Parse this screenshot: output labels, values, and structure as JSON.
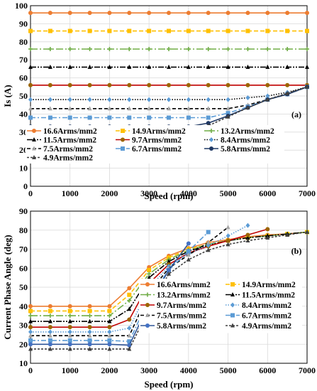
{
  "chart_data": [
    {
      "type": "line",
      "panel_label": "(a)",
      "xlabel": "Speed (rpm)",
      "ylabel": "Is (A)",
      "xlim": [
        0,
        7000
      ],
      "ylim": [
        0,
        100
      ],
      "xticks": [
        0,
        1000,
        2000,
        3000,
        4000,
        5000,
        6000,
        7000
      ],
      "yticks": [
        0,
        10,
        20,
        30,
        40,
        50,
        60,
        70,
        80,
        90,
        100
      ],
      "grid": true,
      "legend_placement": "inside-bottom-left",
      "series": [
        {
          "name": "16.6Arms/mm2",
          "color": "#ed7d31",
          "marker": "circle",
          "dash": "",
          "x": [
            0,
            500,
            1000,
            1500,
            2000,
            2500,
            3000,
            3500,
            4000,
            4500,
            5000,
            5500,
            6000,
            6500,
            7000
          ],
          "y": [
            96,
            96,
            96,
            96,
            96,
            96,
            96,
            96,
            96,
            96,
            96,
            96,
            96,
            96,
            96
          ]
        },
        {
          "name": "14.9Arms/mm2",
          "color": "#ffc000",
          "marker": "square",
          "dash": "6 3",
          "x": [
            0,
            500,
            1000,
            1500,
            2000,
            2500,
            3000,
            3500,
            4000,
            4500,
            5000,
            5500,
            6000,
            6500,
            7000
          ],
          "y": [
            86,
            86,
            86,
            86,
            86,
            86,
            86,
            86,
            86,
            86,
            86,
            86,
            86,
            86,
            86
          ]
        },
        {
          "name": "13.2Arms/mm2",
          "color": "#70ad47",
          "marker": "plus",
          "dash": "10 3 2 3",
          "x": [
            0,
            500,
            1000,
            1500,
            2000,
            2500,
            3000,
            3500,
            4000,
            4500,
            5000,
            5500,
            6000,
            6500,
            7000
          ],
          "y": [
            76,
            76,
            76,
            76,
            76,
            76,
            76,
            76,
            76,
            76,
            76,
            76,
            76,
            76,
            76
          ]
        },
        {
          "name": "11.5Arms/mm2",
          "color": "#000000",
          "marker": "triangle",
          "dash": "8 2 2 2 2 2",
          "x": [
            0,
            500,
            1000,
            1500,
            2000,
            2500,
            3000,
            3500,
            4000,
            4500,
            5000,
            5500,
            6000,
            6500,
            7000
          ],
          "y": [
            66,
            66,
            66,
            66,
            66,
            66,
            66,
            66,
            66,
            66,
            66,
            66,
            66,
            66,
            66
          ]
        },
        {
          "name": "9.7Arms/mm2",
          "color": "#c00000",
          "marker": "circle",
          "dash": "",
          "markerColor": "#9c6500",
          "x": [
            0,
            500,
            1000,
            1500,
            2000,
            2500,
            3000,
            3500,
            4000,
            4500,
            5000,
            5500,
            6000,
            6500,
            7000
          ],
          "y": [
            56,
            56,
            56,
            56,
            56,
            56,
            56,
            56,
            56,
            56,
            56,
            56,
            56,
            56,
            56
          ]
        },
        {
          "name": "8.4Arms/mm2",
          "color": "#000000",
          "marker": "diamond",
          "dash": "1.5 2",
          "markerColor": "#5b9bd5",
          "x": [
            0,
            500,
            1000,
            1500,
            2000,
            2500,
            3000,
            3500,
            4000,
            4500,
            5000,
            5500,
            6000,
            6500,
            7000
          ],
          "y": [
            48,
            48,
            48,
            48,
            48,
            48,
            48,
            48,
            48,
            48,
            48,
            49,
            50,
            52,
            55
          ]
        },
        {
          "name": "7.5Arms/mm2",
          "color": "#000000",
          "marker": "triangle",
          "dash": "5 3",
          "markerColor": "#a5a5a5",
          "x": [
            0,
            500,
            1000,
            1500,
            2000,
            2500,
            3000,
            3500,
            4000,
            4500,
            5000,
            5500,
            6000,
            6500,
            7000
          ],
          "y": [
            43,
            43,
            43,
            43,
            43,
            43,
            43,
            43,
            43,
            43,
            43,
            45,
            48,
            51,
            55
          ]
        },
        {
          "name": "6.7Arms/mm2",
          "color": "#5b9bd5",
          "marker": "square",
          "dash": "7 3 2 3",
          "x": [
            0,
            500,
            1000,
            1500,
            2000,
            2500,
            3000,
            3500,
            4000,
            4500,
            5000,
            5500,
            6000,
            6500,
            7000
          ],
          "y": [
            38,
            38,
            38,
            38,
            38,
            38,
            38,
            38,
            38,
            38,
            40.5,
            44,
            48,
            51,
            55
          ]
        },
        {
          "name": "5.8Arms/mm2",
          "color": "#1f3864",
          "marker": "circle",
          "dash": "",
          "x": [
            0,
            500,
            1000,
            1500,
            2000,
            2500,
            3000,
            3500,
            4000,
            4500,
            5000,
            5500,
            6000,
            6500,
            7000
          ],
          "y": [
            33,
            33,
            33,
            33,
            33,
            33,
            33,
            33,
            33,
            35,
            39,
            43.5,
            48,
            51,
            55
          ]
        },
        {
          "name": "4.9Arms/mm2",
          "color": "#404040",
          "marker": "triangle",
          "dash": "3 2",
          "x": [
            0,
            500,
            1000,
            1500,
            2000,
            2500,
            3000,
            3500,
            4000,
            4500,
            5000,
            5500,
            6000,
            6500,
            7000
          ],
          "y": [
            28,
            28,
            28,
            28,
            28,
            28,
            28,
            28,
            28,
            33.5,
            38.5,
            43.5,
            48,
            51.5,
            55
          ]
        }
      ]
    },
    {
      "type": "line",
      "panel_label": "(b)",
      "xlabel": "Speed (rpm)",
      "ylabel": "Current Phase Angle (deg)",
      "xlim": [
        0,
        7000
      ],
      "ylim": [
        10,
        90
      ],
      "xticks": [
        0,
        1000,
        2000,
        3000,
        4000,
        5000,
        6000,
        7000
      ],
      "yticks": [
        10,
        20,
        30,
        40,
        50,
        60,
        70,
        80,
        90
      ],
      "grid": true,
      "legend_placement": "inside-bottom-right",
      "series": [
        {
          "name": "16.6Arms/mm2",
          "color": "#ed7d31",
          "marker": "circle",
          "dash": "",
          "x": [
            0,
            500,
            1000,
            1500,
            2000,
            2500,
            3000,
            3500,
            4000,
            4500,
            5000,
            5500,
            6000,
            6500,
            7000
          ],
          "y": [
            40,
            40,
            40,
            40,
            40,
            49.5,
            60.5,
            66.5,
            70.5,
            73.5,
            75,
            76.5,
            77.5,
            78,
            79
          ]
        },
        {
          "name": "14.9Arms/mm2",
          "color": "#ffc000",
          "marker": "square",
          "dash": "6 3",
          "x": [
            0,
            500,
            1000,
            1500,
            2000,
            2500,
            3000,
            3500,
            4000,
            4500,
            5000,
            5500,
            6000,
            6500,
            7000
          ],
          "y": [
            37.5,
            37.5,
            37.5,
            37.5,
            37.5,
            46,
            59,
            65.5,
            70,
            72.5,
            74.5,
            76,
            77,
            78,
            79
          ]
        },
        {
          "name": "13.2Arms/mm2",
          "color": "#70ad47",
          "marker": "plus",
          "dash": "10 3 2 3",
          "x": [
            0,
            500,
            1000,
            1500,
            2000,
            2500,
            3000,
            3500,
            4000,
            4500,
            5000,
            5500,
            6000,
            6500,
            7000
          ],
          "y": [
            35,
            35,
            35,
            35,
            35,
            43,
            57,
            64.5,
            69.5,
            72.5,
            74.5,
            76,
            77,
            78,
            79
          ]
        },
        {
          "name": "11.5Arms/mm2",
          "color": "#000000",
          "marker": "triangle",
          "dash": "8 2 2 2 2 2",
          "x": [
            0,
            500,
            1000,
            1500,
            2000,
            2500,
            3000,
            3500,
            4000,
            4500,
            5000,
            5500,
            6000,
            6500,
            7000
          ],
          "y": [
            32,
            32,
            32,
            32,
            32,
            38.5,
            55,
            63.5,
            69,
            72,
            74.5,
            76,
            77,
            78,
            79
          ]
        },
        {
          "name": "9.7Arms/mm2",
          "color": "#c00000",
          "marker": "circle",
          "dash": "",
          "markerColor": "#9c6500",
          "x": [
            0,
            500,
            1000,
            1500,
            2000,
            2500,
            3000,
            3500,
            4000,
            4500,
            5000,
            5500,
            6000
          ],
          "y": [
            29,
            29,
            29,
            29,
            29,
            33,
            52,
            62,
            68,
            71.5,
            74.5,
            77.5,
            80.5
          ]
        },
        {
          "name": "8.4Arms/mm2",
          "color": "#5b9bd5",
          "marker": "diamond",
          "dash": "1.5 2",
          "x": [
            0,
            500,
            1000,
            1500,
            2000,
            2500,
            3000,
            3500,
            4000,
            4500,
            5000,
            5500
          ],
          "y": [
            26.5,
            26.5,
            26.5,
            26.5,
            26.5,
            28.5,
            49.5,
            61,
            67.5,
            72,
            77,
            82.5
          ]
        },
        {
          "name": "7.5Arms/mm2",
          "color": "#000000",
          "marker": "triangle",
          "dash": "5 3",
          "markerColor": "#a5a5a5",
          "x": [
            0,
            500,
            1000,
            1500,
            2000,
            2500,
            3000,
            3500,
            4000,
            4500,
            5000
          ],
          "y": [
            24.5,
            24.5,
            24.5,
            24.5,
            24.5,
            24.5,
            47,
            60,
            67,
            73.5,
            81.5
          ]
        },
        {
          "name": "6.7Arms/mm2",
          "color": "#5b9bd5",
          "marker": "square",
          "dash": "7 3 2 3",
          "x": [
            0,
            500,
            1000,
            1500,
            2000,
            2500,
            3000,
            3500,
            4000,
            4500
          ],
          "y": [
            22,
            22,
            22,
            22,
            22,
            21.5,
            44,
            59,
            69,
            79
          ]
        },
        {
          "name": "5.8Arms/mm2",
          "color": "#2f5597",
          "marker": "circle",
          "dash": "",
          "markerColor": "#4472c4",
          "x": [
            0,
            500,
            1000,
            1500,
            2000,
            2500,
            3000,
            3500,
            4000
          ],
          "y": [
            20,
            20,
            20,
            20,
            20,
            19.5,
            41,
            59,
            73
          ]
        },
        {
          "name": "4.9Arms/mm2",
          "color": "#404040",
          "marker": "triangle",
          "dash": "3 2",
          "x": [
            0,
            500,
            1000,
            1500,
            2000,
            2500,
            3000,
            3500,
            4000,
            4500,
            5000,
            5500,
            6000,
            6500,
            7000
          ],
          "y": [
            17.5,
            17.5,
            17.5,
            17.5,
            17.5,
            17.5,
            38.5,
            57,
            64.5,
            69.5,
            72.5,
            74.5,
            76,
            77.5,
            79
          ]
        }
      ]
    }
  ]
}
